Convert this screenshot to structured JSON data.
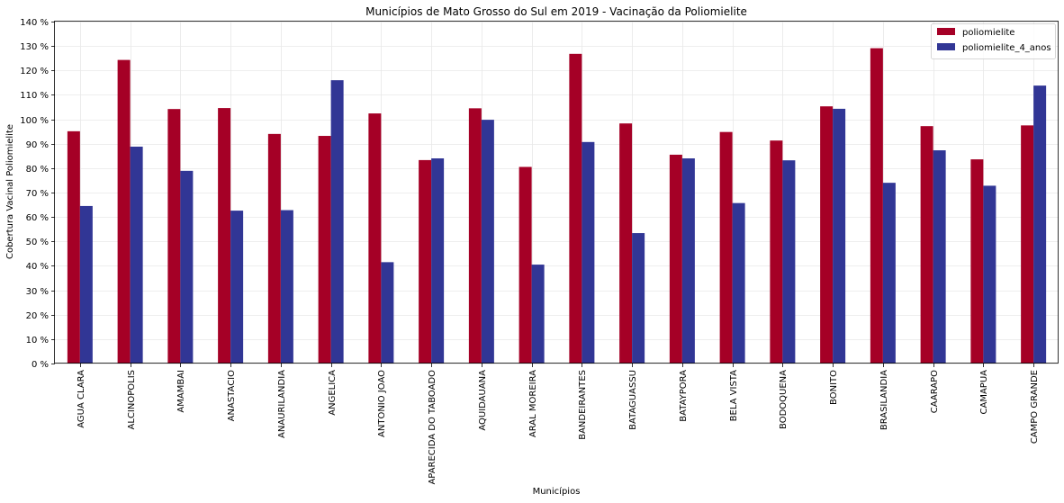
{
  "chart_data": {
    "type": "bar",
    "title": "Municípios de Mato Grosso do Sul em 2019 - Vacinação da Poliomielite",
    "xlabel": "Municípios",
    "ylabel": "Cobertura Vacinal Poliomielite",
    "ylim": [
      0,
      140
    ],
    "yticks": [
      0,
      10,
      20,
      30,
      40,
      50,
      60,
      70,
      80,
      90,
      100,
      110,
      120,
      130,
      140
    ],
    "ytick_suffix": " %",
    "grid": true,
    "legend_position": "top-right",
    "categories": [
      "AGUA CLARA",
      "ALCINOPOLIS",
      "AMAMBAI",
      "ANASTACIO",
      "ANAURILANDIA",
      "ANGELICA",
      "ANTONIO JOAO",
      "APARECIDA DO TABOADO",
      "AQUIDAUANA",
      "ARAL MOREIRA",
      "BANDEIRANTES",
      "BATAGUASSU",
      "BATAYPORA",
      "BELA VISTA",
      "BODOQUENA",
      "BONITO",
      "BRASILANDIA",
      "CAARAPO",
      "CAMAPUA",
      "CAMPO GRANDE"
    ],
    "series": [
      {
        "name": "poliomielite",
        "color": "#a50026",
        "values": [
          95.1,
          124.3,
          104.2,
          104.6,
          94.0,
          93.2,
          102.4,
          83.3,
          104.5,
          80.5,
          126.8,
          98.3,
          85.5,
          94.8,
          91.3,
          105.3,
          129.1,
          97.2,
          83.6,
          97.5
        ]
      },
      {
        "name": "poliomielite_4_anos",
        "color": "#313695",
        "values": [
          64.5,
          88.8,
          78.9,
          62.6,
          62.8,
          116.0,
          41.5,
          84.0,
          99.8,
          40.5,
          90.7,
          53.4,
          84.0,
          65.7,
          83.2,
          104.3,
          74.0,
          87.3,
          72.8,
          113.8
        ]
      }
    ]
  }
}
